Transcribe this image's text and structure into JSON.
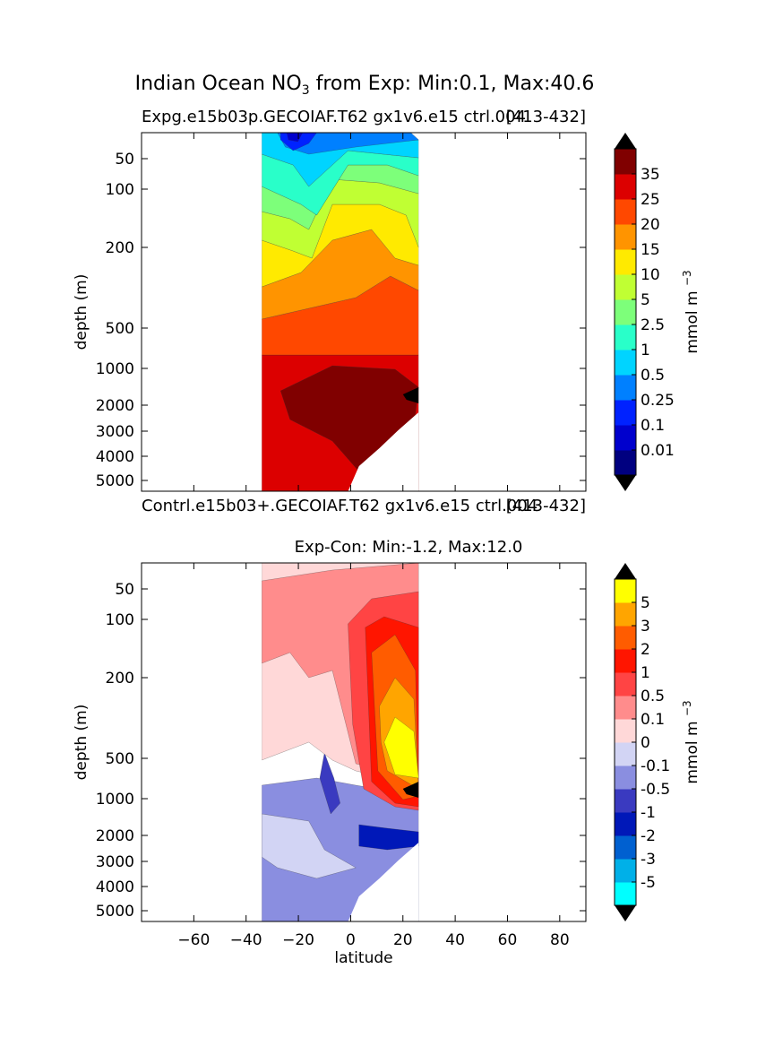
{
  "figure": {
    "suptitle_main": "Indian Ocean NO",
    "suptitle_sub": "3",
    "suptitle_rest": " from Exp: Min:0.1, Max:40.6"
  },
  "chart_data": [
    {
      "type": "heatmap",
      "title_left": "Expg.e15b03p.GECOIAF.T62 gx1v6.e15 ctrl.004",
      "title_right": "[413-432]",
      "ylabel": "depth (m)",
      "xlim": [
        -80,
        90
      ],
      "y_scale": "depth-stretched",
      "ylim": [
        5500,
        0
      ],
      "y_ticks": [
        50,
        100,
        200,
        500,
        1000,
        2000,
        3000,
        4000,
        5000
      ],
      "x_ticks_shown": false,
      "data_extent_lat": [
        -34,
        26
      ],
      "colorbar": {
        "label": "mmol m",
        "label_sup": "−3",
        "levels": [
          "0.01",
          "0.1",
          "0.25",
          "0.5",
          "1",
          "2.5",
          "5",
          "10",
          "15",
          "20",
          "25",
          "35"
        ],
        "colors": [
          "#000080",
          "#0000cd",
          "#0022ff",
          "#0080ff",
          "#00d4ff",
          "#29ffc9",
          "#7dff7a",
          "#c0ff33",
          "#ffea00",
          "#ff9400",
          "#ff4800",
          "#dc0000",
          "#800000"
        ]
      }
    },
    {
      "type": "heatmap",
      "title_left": "Contrl.e15b03+.GECOIAF.T62 gx1v6.e15 ctrl.004",
      "title_right": "[413-432]",
      "title_center": "Exp-Con: Min:-1.2, Max:12.0",
      "xlabel": "latitude",
      "ylabel": "depth (m)",
      "xlim": [
        -80,
        90
      ],
      "x_ticks": [
        -60,
        -40,
        -20,
        0,
        20,
        40,
        60,
        80
      ],
      "y_scale": "depth-stretched",
      "ylim": [
        5500,
        0
      ],
      "y_ticks": [
        50,
        100,
        200,
        500,
        1000,
        2000,
        3000,
        4000,
        5000
      ],
      "data_extent_lat": [
        -34,
        26
      ],
      "colorbar": {
        "label": "mmol m",
        "label_sup": "−3",
        "levels": [
          "-5",
          "-3",
          "-2",
          "-1",
          "-0.5",
          "-0.1",
          "0",
          "0.1",
          "0.5",
          "1",
          "2",
          "3",
          "5"
        ],
        "colors": [
          "#00ffff",
          "#00b0e8",
          "#0060d0",
          "#0018b8",
          "#3a3ac0",
          "#8a8ee0",
          "#d2d4f4",
          "#ffd8d8",
          "#ff8c8c",
          "#ff4444",
          "#ff1500",
          "#ff5c00",
          "#ffa500",
          "#ffff00"
        ]
      }
    }
  ]
}
